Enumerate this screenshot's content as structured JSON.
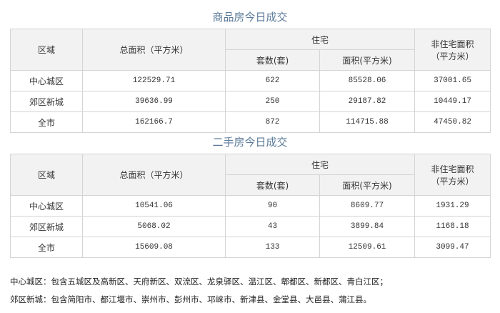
{
  "tables": [
    {
      "title": "商品房今日成交",
      "headers": {
        "region": "区域",
        "total": "总面积（平方米）",
        "residential": "住宅",
        "units": "套数(套)",
        "res_area": "面积(平方米)",
        "nonres": "非住宅面积",
        "nonres_unit": "（平方米）"
      },
      "rows": [
        [
          "中心城区",
          "122529.71",
          "622",
          "85528.06",
          "37001.65"
        ],
        [
          "郊区新城",
          "39636.99",
          "250",
          "29187.82",
          "10449.17"
        ],
        [
          "全市",
          "162166.7",
          "872",
          "114715.88",
          "47450.82"
        ]
      ]
    },
    {
      "title": "二手房今日成交",
      "headers": {
        "region": "区域",
        "total": "总面积（平方米）",
        "residential": "住宅",
        "units": "套数(套)",
        "res_area": "面积(平方米)",
        "nonres": "非住宅面积",
        "nonres_unit": "（平方米）"
      },
      "rows": [
        [
          "中心城区",
          "10541.06",
          "90",
          "8609.77",
          "1931.29"
        ],
        [
          "郊区新城",
          "5068.02",
          "43",
          "3899.84",
          "1168.18"
        ],
        [
          "全市",
          "15609.08",
          "133",
          "12509.61",
          "3099.47"
        ]
      ]
    }
  ],
  "notes": [
    "中心城区：包含五城区及高新区、天府新区、双流区、龙泉驿区、温江区、郫都区、新都区、青白江区；",
    "郊区新城：包含简阳市、都江堰市、崇州市、彭州市、邛崃市、新津县、金堂县、大邑县、蒲江县。"
  ],
  "colors": {
    "title": "#5b7a99",
    "header_bg": "#f2f2f2",
    "border": "#d4d4d4"
  }
}
